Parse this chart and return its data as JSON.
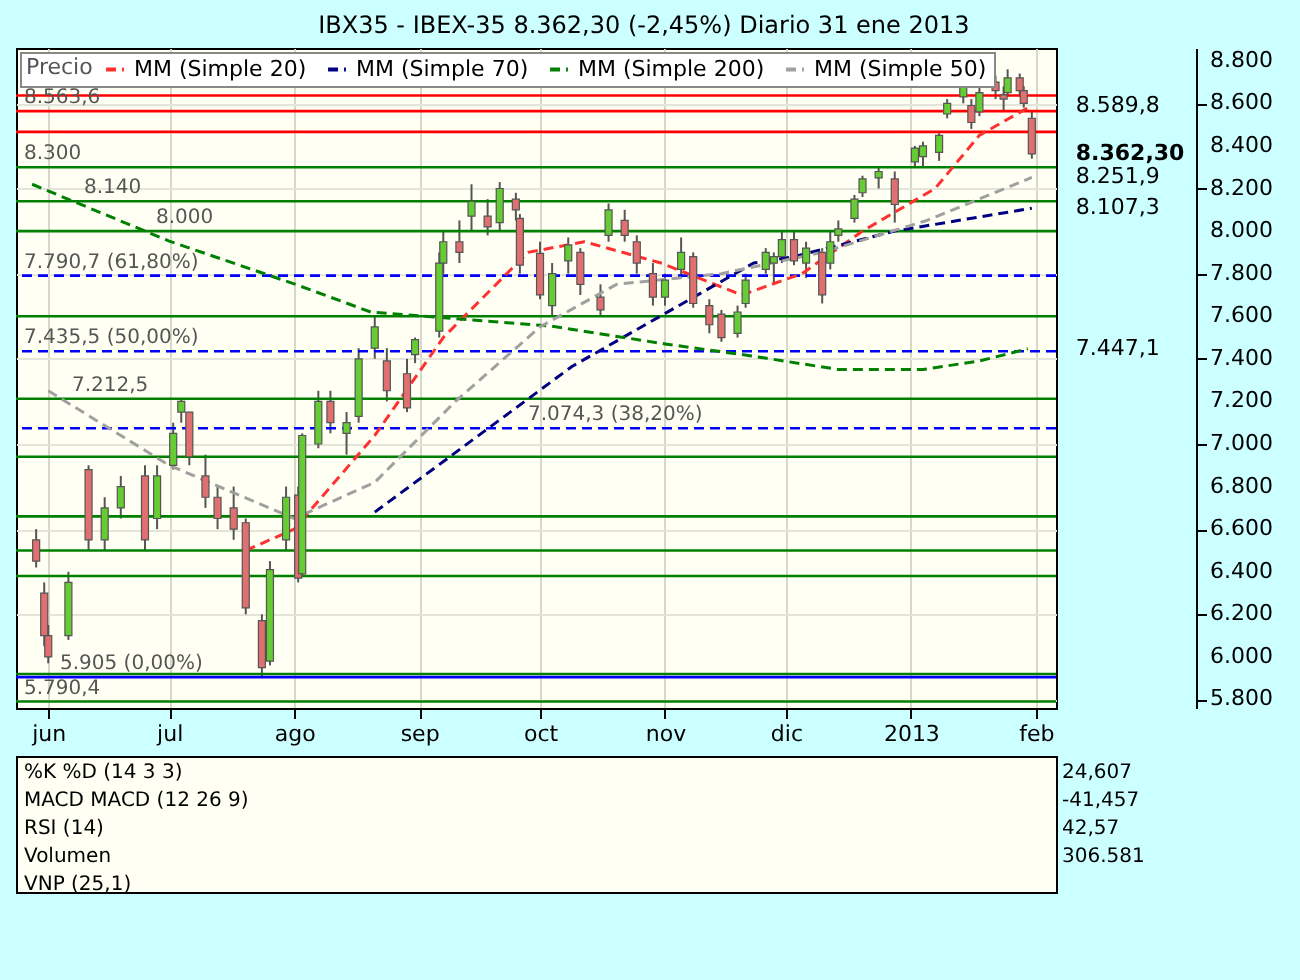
{
  "chart_data": {
    "type": "candlestick",
    "title": "IBX35 - IBEX-35   8.362,30 (-2,45%)   Diario  31 ene 2013",
    "legend_title": "Precio",
    "legend": "top left",
    "grid": true,
    "x": [
      "2012-05-29",
      "2012-05-31",
      "2012-06-01",
      "2012-06-06",
      "2012-06-11",
      "2012-06-15",
      "2012-06-19",
      "2012-06-25",
      "2012-06-28",
      "2012-07-02",
      "2012-07-04",
      "2012-07-06",
      "2012-07-10",
      "2012-07-13",
      "2012-07-17",
      "2012-07-20",
      "2012-07-24",
      "2012-07-26",
      "2012-07-30",
      "2012-08-02",
      "2012-08-03",
      "2012-08-07",
      "2012-08-10",
      "2012-08-14",
      "2012-08-17",
      "2012-08-21",
      "2012-08-24",
      "2012-08-29",
      "2012-08-31",
      "2012-09-06",
      "2012-09-07",
      "2012-09-11",
      "2012-09-14",
      "2012-09-18",
      "2012-09-21",
      "2012-09-25",
      "2012-09-26",
      "2012-10-01",
      "2012-10-04",
      "2012-10-08",
      "2012-10-11",
      "2012-10-16",
      "2012-10-18",
      "2012-10-22",
      "2012-10-25",
      "2012-10-29",
      "2012-11-01",
      "2012-11-05",
      "2012-11-08",
      "2012-11-12",
      "2012-11-15",
      "2012-11-19",
      "2012-11-21",
      "2012-11-26",
      "2012-11-28",
      "2012-11-30",
      "2012-12-03",
      "2012-12-06",
      "2012-12-10",
      "2012-12-12",
      "2012-12-14",
      "2012-12-18",
      "2012-12-20",
      "2012-12-24",
      "2012-12-28",
      "2013-01-02",
      "2013-01-04",
      "2013-01-08",
      "2013-01-10",
      "2013-01-14",
      "2013-01-16",
      "2013-01-18",
      "2013-01-22",
      "2013-01-24",
      "2013-01-25",
      "2013-01-28",
      "2013-01-29",
      "2013-01-31"
    ],
    "ohlc": [
      [
        6550,
        6600,
        6420,
        6450
      ],
      [
        6300,
        6350,
        6050,
        6100
      ],
      [
        6100,
        6150,
        5970,
        6000
      ],
      [
        6100,
        6400,
        6080,
        6350
      ],
      [
        6880,
        6900,
        6500,
        6550
      ],
      [
        6550,
        6750,
        6500,
        6700
      ],
      [
        6700,
        6850,
        6650,
        6800
      ],
      [
        6850,
        6900,
        6500,
        6550
      ],
      [
        6650,
        6900,
        6600,
        6850
      ],
      [
        6900,
        7100,
        6880,
        7050
      ],
      [
        7150,
        7210,
        7100,
        7200
      ],
      [
        7150,
        7150,
        6900,
        6940
      ],
      [
        6850,
        6950,
        6700,
        6750
      ],
      [
        6750,
        6800,
        6600,
        6650
      ],
      [
        6700,
        6800,
        6550,
        6600
      ],
      [
        6630,
        6650,
        6200,
        6230
      ],
      [
        6170,
        6200,
        5905,
        5950
      ],
      [
        5980,
        6450,
        5960,
        6410
      ],
      [
        6550,
        6800,
        6500,
        6750
      ],
      [
        6760,
        6800,
        6350,
        6370
      ],
      [
        6390,
        7050,
        6380,
        7040
      ],
      [
        7000,
        7250,
        6980,
        7200
      ],
      [
        7200,
        7250,
        7050,
        7100
      ],
      [
        7050,
        7150,
        6950,
        7100
      ],
      [
        7130,
        7450,
        7100,
        7400
      ],
      [
        7450,
        7600,
        7400,
        7550
      ],
      [
        7390,
        7450,
        7200,
        7250
      ],
      [
        7330,
        7400,
        7150,
        7170
      ],
      [
        7420,
        7500,
        7380,
        7490
      ],
      [
        7530,
        7900,
        7500,
        7850
      ],
      [
        7850,
        8000,
        7800,
        7950
      ],
      [
        7950,
        8050,
        7850,
        7900
      ],
      [
        8070,
        8220,
        8000,
        8140
      ],
      [
        8070,
        8150,
        7980,
        8020
      ],
      [
        8040,
        8230,
        8000,
        8200
      ],
      [
        8150,
        8180,
        8050,
        8100
      ],
      [
        8060,
        8080,
        7800,
        7840
      ],
      [
        7895,
        7950,
        7680,
        7700
      ],
      [
        7650,
        7850,
        7600,
        7800
      ],
      [
        7860,
        7970,
        7800,
        7935
      ],
      [
        7900,
        7920,
        7700,
        7750
      ],
      [
        7690,
        7750,
        7600,
        7630
      ],
      [
        7980,
        8130,
        7950,
        8100
      ],
      [
        8050,
        8100,
        7950,
        7980
      ],
      [
        7950,
        7980,
        7800,
        7850
      ],
      [
        7800,
        7850,
        7650,
        7690
      ],
      [
        7690,
        7800,
        7650,
        7770
      ],
      [
        7820,
        7970,
        7780,
        7900
      ],
      [
        7880,
        7900,
        7640,
        7660
      ],
      [
        7650,
        7680,
        7520,
        7560
      ],
      [
        7610,
        7630,
        7480,
        7500
      ],
      [
        7520,
        7650,
        7500,
        7620
      ],
      [
        7660,
        7800,
        7640,
        7770
      ],
      [
        7820,
        7920,
        7800,
        7900
      ],
      [
        7850,
        7900,
        7750,
        7880
      ],
      [
        7880,
        8000,
        7850,
        7960
      ],
      [
        7960,
        8000,
        7840,
        7860
      ],
      [
        7850,
        7950,
        7780,
        7920
      ],
      [
        7900,
        7920,
        7660,
        7700
      ],
      [
        7850,
        8000,
        7820,
        7950
      ],
      [
        7980,
        8050,
        7950,
        8010
      ],
      [
        8060,
        8170,
        8040,
        8150
      ],
      [
        8180,
        8260,
        8160,
        8245
      ],
      [
        8250,
        8300,
        8200,
        8280
      ],
      [
        8245,
        8280,
        8040,
        8125
      ],
      [
        8325,
        8400,
        8300,
        8390
      ],
      [
        8350,
        8420,
        8300,
        8400
      ],
      [
        8370,
        8460,
        8330,
        8450
      ],
      [
        8550,
        8620,
        8530,
        8600
      ],
      [
        8630,
        8700,
        8600,
        8680
      ],
      [
        8590,
        8620,
        8480,
        8510
      ],
      [
        8560,
        8700,
        8540,
        8650
      ],
      [
        8700,
        8730,
        8620,
        8660
      ],
      [
        8640,
        8680,
        8560,
        8620
      ],
      [
        8650,
        8760,
        8630,
        8720
      ],
      [
        8720,
        8740,
        8630,
        8660
      ],
      [
        8660,
        8680,
        8580,
        8600
      ],
      [
        8530,
        8560,
        8340,
        8362.3
      ]
    ],
    "colors": [
      "#e07070",
      "#e07070",
      "#e07070",
      "#66cc33",
      "#e07070",
      "#66cc33",
      "#66cc33",
      "#e07070",
      "#66cc33",
      "#66cc33",
      "#66cc33",
      "#e07070",
      "#e07070",
      "#e07070",
      "#e07070",
      "#e07070",
      "#e07070",
      "#66cc33",
      "#66cc33",
      "#e07070",
      "#66cc33",
      "#66cc33",
      "#e07070",
      "#66cc33",
      "#66cc33",
      "#66cc33",
      "#e07070",
      "#e07070",
      "#66cc33",
      "#66cc33",
      "#66cc33",
      "#e07070",
      "#66cc33",
      "#e07070",
      "#66cc33",
      "#e07070",
      "#e07070",
      "#e07070",
      "#66cc33",
      "#66cc33",
      "#e07070",
      "#e07070",
      "#66cc33",
      "#e07070",
      "#e07070",
      "#e07070",
      "#66cc33",
      "#66cc33",
      "#e07070",
      "#e07070",
      "#e07070",
      "#66cc33",
      "#66cc33",
      "#66cc33",
      "#66cc33",
      "#66cc33",
      "#e07070",
      "#66cc33",
      "#e07070",
      "#66cc33",
      "#66cc33",
      "#66cc33",
      "#66cc33",
      "#66cc33",
      "#e07070",
      "#66cc33",
      "#66cc33",
      "#66cc33",
      "#66cc33",
      "#66cc33",
      "#e07070",
      "#66cc33",
      "#e07070",
      "#e07070",
      "#66cc33",
      "#e07070",
      "#e07070",
      "#e07070"
    ],
    "series": [
      {
        "name": "MM (Simple 20)",
        "type": "line",
        "line_style": "dashed",
        "color": "#ff3030",
        "x": [
          "2012-07-20",
          "2012-08-01",
          "2012-08-21",
          "2012-09-07",
          "2012-09-28",
          "2012-10-12",
          "2012-10-31",
          "2012-11-20",
          "2012-12-05",
          "2012-12-20",
          "2013-01-07",
          "2013-01-18",
          "2013-01-31"
        ],
        "values": [
          6500,
          6600,
          7040,
          7500,
          7900,
          7950,
          7850,
          7700,
          7800,
          8000,
          8200,
          8450,
          8589.8
        ]
      },
      {
        "name": "MM (Simple 70)",
        "type": "line",
        "line_style": "dashed",
        "color": "#000080",
        "x": [
          "2012-08-21",
          "2012-10-09",
          "2012-11-23",
          "2012-12-03",
          "2012-12-28",
          "2013-01-31"
        ],
        "values": [
          6680,
          7365,
          7850,
          7880,
          8000,
          8107.3
        ]
      },
      {
        "name": "MM (Simple 200)",
        "type": "line",
        "line_style": "dashed",
        "color": "#008000",
        "x": [
          "2012-05-28",
          "2012-07-01",
          "2012-08-01",
          "2012-08-20",
          "2012-10-04",
          "2012-11-01",
          "2012-11-22",
          "2012-12-14",
          "2013-01-04",
          "2013-01-18",
          "2013-01-30"
        ],
        "values": [
          8220,
          7953,
          7752,
          7620,
          7553,
          7470,
          7415,
          7350,
          7350,
          7390,
          7447.1
        ]
      },
      {
        "name": "MM (Simple 50)",
        "type": "line",
        "line_style": "dashed",
        "color": "#a0a0a0",
        "x": [
          "2012-06-01",
          "2012-07-01",
          "2012-08-01",
          "2012-08-21",
          "2012-09-10",
          "2012-10-01",
          "2012-10-20",
          "2012-11-15",
          "2012-12-10",
          "2013-01-05",
          "2013-01-31"
        ],
        "values": [
          7250,
          6900,
          6650,
          6820,
          7200,
          7550,
          7750,
          7800,
          7900,
          8050,
          8251.9
        ]
      }
    ],
    "ref_lines": [
      {
        "axis": "y",
        "value": 8637,
        "color": "#ff0000"
      },
      {
        "axis": "y",
        "value": 8563.6,
        "label": "8.563,6",
        "color": "#ff0000"
      },
      {
        "axis": "y",
        "value": 8466,
        "color": "#ff0000"
      },
      {
        "axis": "y",
        "value": 8300,
        "label": "8.300",
        "color": "#008000"
      },
      {
        "axis": "y",
        "value": 8140,
        "label": "8.140",
        "color": "#008000"
      },
      {
        "axis": "y",
        "value": 8000,
        "label": "8.000",
        "color": "#008000"
      },
      {
        "axis": "y",
        "value": 7790.7,
        "label": "7.790,7 (61,80%)",
        "color": "#0000ff",
        "line_style": "dashed"
      },
      {
        "axis": "y",
        "value": 7600,
        "color": "#008000"
      },
      {
        "axis": "y",
        "value": 7435.5,
        "label": "7.435,5 (50,00%)",
        "color": "#0000ff",
        "line_style": "dashed"
      },
      {
        "axis": "y",
        "value": 7212.5,
        "label": "7.212,5",
        "color": "#008000"
      },
      {
        "axis": "y",
        "value": 7074.3,
        "label": "7.074,3 (38,20%)",
        "color": "#0000ff",
        "line_style": "dashed"
      },
      {
        "axis": "y",
        "value": 6940,
        "color": "#008000"
      },
      {
        "axis": "y",
        "value": 6660,
        "color": "#008000"
      },
      {
        "axis": "y",
        "value": 6500,
        "color": "#008000"
      },
      {
        "axis": "y",
        "value": 6380,
        "color": "#008000"
      },
      {
        "axis": "y",
        "value": 5920,
        "color": "#008000"
      },
      {
        "axis": "y",
        "value": 5905,
        "label": "5.905 (0,00%)",
        "color": "#0000ff"
      },
      {
        "axis": "y",
        "value": 5790.4,
        "label": "5.790,4",
        "color": "#008000"
      }
    ],
    "annotations": [
      {
        "text": "8.589,8",
        "x": "2013-01-31",
        "y": 8589.8
      },
      {
        "text": "8.362,30",
        "x": "2013-01-31",
        "y": 8362.3
      },
      {
        "text": "8.251,9",
        "x": "2013-01-31",
        "y": 8251.9
      },
      {
        "text": "8.107,3",
        "x": "2013-01-31",
        "y": 8107.3
      },
      {
        "text": "7.447,1",
        "x": "2013-01-31",
        "y": 7447.1
      },
      "%K  %D (14 3 3)",
      "24,607",
      "MACD   MACD (12 26 9)",
      "-41,457",
      "RSI (14)",
      "42,57",
      "Volumen",
      "306.581",
      "VNP (25,1)"
    ],
    "xlim": [
      "2012-05-24",
      "2013-02-06"
    ],
    "xticks": [
      {
        "value": "2012-06-01",
        "label": "jun"
      },
      {
        "value": "2012-07-01",
        "label": "jul"
      },
      {
        "value": "2012-08-01",
        "label": "ago"
      },
      {
        "value": "2012-09-01",
        "label": "sep"
      },
      {
        "value": "2012-10-01",
        "label": "oct"
      },
      {
        "value": "2012-11-01",
        "label": "nov"
      },
      {
        "value": "2012-12-01",
        "label": "dic"
      },
      {
        "value": "2013-01-01",
        "label": "2013"
      },
      {
        "value": "2013-02-01",
        "label": "feb"
      }
    ],
    "ylim": [
      5760,
      8860
    ],
    "yticks": [
      {
        "value": 5800,
        "label": "5.800"
      },
      {
        "value": 6000,
        "label": "6.000"
      },
      {
        "value": 6200,
        "label": "6.200"
      },
      {
        "value": 6400,
        "label": "6.400"
      },
      {
        "value": 6600,
        "label": "6.600"
      },
      {
        "value": 6800,
        "label": "6.800"
      },
      {
        "value": 7000,
        "label": "7.000"
      },
      {
        "value": 7200,
        "label": "7.200"
      },
      {
        "value": 7400,
        "label": "7.400"
      },
      {
        "value": 7600,
        "label": "7.600"
      },
      {
        "value": 7800,
        "label": "7.800"
      },
      {
        "value": 8000,
        "label": "8.000"
      },
      {
        "value": 8200,
        "label": "8.200"
      },
      {
        "value": 8400,
        "label": "8.400"
      },
      {
        "value": 8600,
        "label": "8.600"
      },
      {
        "value": 8800,
        "label": "8.800"
      }
    ]
  }
}
